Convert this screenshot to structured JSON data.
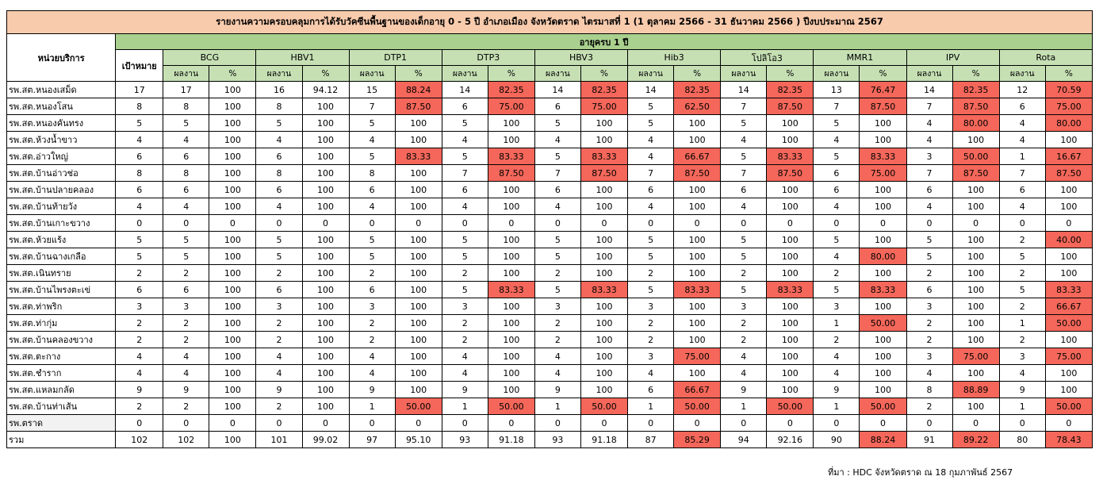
{
  "report": {
    "title": "รายงานความครอบคลุมการได้รับวัคซีนพื้นฐานของเด็กอายุ 0 - 5 ปี อำเภอเมือง จังหวัดตราด ไตรมาสที่ 1 (1 ตุลาคม 2566 - 31 ธันวาคม 2566 ) ปีงบประมาณ 2567",
    "unit_header": "หน่วยบริการ",
    "age_band": "อายุครบ 1 ปี",
    "target_header": "เป้าหมาย",
    "result_label": "ผลงาน",
    "percent_label": "%",
    "source": "ที่มา : HDC จังหวัดตราด ณ 18 กุมภาพันธ์ 2567",
    "highlight_color": "#f4675a",
    "header_color": "#f8cbad",
    "band_color": "#a9d08e",
    "sub_color": "#c6e0b4"
  },
  "vaccines": [
    "BCG",
    "HBV1",
    "DTP1",
    "DTP3",
    "HBV3",
    "Hib3",
    "โปลิโอ3",
    "MMR1",
    "IPV",
    "Rota"
  ],
  "rows": [
    {
      "unit": "รพ.สต.หนองเสม็ด",
      "target": "17",
      "cells": [
        [
          "17",
          "100",
          0
        ],
        [
          "16",
          "94.12",
          0
        ],
        [
          "15",
          "88.24",
          1
        ],
        [
          "14",
          "82.35",
          1
        ],
        [
          "14",
          "82.35",
          1
        ],
        [
          "14",
          "82.35",
          1
        ],
        [
          "14",
          "82.35",
          1
        ],
        [
          "13",
          "76.47",
          1
        ],
        [
          "14",
          "82.35",
          1
        ],
        [
          "12",
          "70.59",
          1
        ]
      ]
    },
    {
      "unit": "รพ.สต.หนองโสน",
      "target": "8",
      "cells": [
        [
          "8",
          "100",
          0
        ],
        [
          "8",
          "100",
          0
        ],
        [
          "7",
          "87.50",
          1
        ],
        [
          "6",
          "75.00",
          1
        ],
        [
          "6",
          "75.00",
          1
        ],
        [
          "5",
          "62.50",
          1
        ],
        [
          "7",
          "87.50",
          1
        ],
        [
          "7",
          "87.50",
          1
        ],
        [
          "7",
          "87.50",
          1
        ],
        [
          "6",
          "75.00",
          1
        ]
      ]
    },
    {
      "unit": "รพ.สต.หนองคันทรง",
      "target": "5",
      "cells": [
        [
          "5",
          "100",
          0
        ],
        [
          "5",
          "100",
          0
        ],
        [
          "5",
          "100",
          0
        ],
        [
          "5",
          "100",
          0
        ],
        [
          "5",
          "100",
          0
        ],
        [
          "5",
          "100",
          0
        ],
        [
          "5",
          "100",
          0
        ],
        [
          "5",
          "100",
          0
        ],
        [
          "4",
          "80.00",
          1
        ],
        [
          "4",
          "80.00",
          1
        ]
      ]
    },
    {
      "unit": "รพ.สต.ห้วงน้ำขาว",
      "target": "4",
      "cells": [
        [
          "4",
          "100",
          0
        ],
        [
          "4",
          "100",
          0
        ],
        [
          "4",
          "100",
          0
        ],
        [
          "4",
          "100",
          0
        ],
        [
          "4",
          "100",
          0
        ],
        [
          "4",
          "100",
          0
        ],
        [
          "4",
          "100",
          0
        ],
        [
          "4",
          "100",
          0
        ],
        [
          "4",
          "100",
          0
        ],
        [
          "4",
          "100",
          0
        ]
      ]
    },
    {
      "unit": "รพ.สต.อ่าวใหญ่",
      "target": "6",
      "cells": [
        [
          "6",
          "100",
          0
        ],
        [
          "6",
          "100",
          0
        ],
        [
          "5",
          "83.33",
          1
        ],
        [
          "5",
          "83.33",
          1
        ],
        [
          "5",
          "83.33",
          1
        ],
        [
          "4",
          "66.67",
          1
        ],
        [
          "5",
          "83.33",
          1
        ],
        [
          "5",
          "83.33",
          1
        ],
        [
          "3",
          "50.00",
          1
        ],
        [
          "1",
          "16.67",
          1
        ]
      ]
    },
    {
      "unit": "รพ.สต.บ้านอ่าวช่อ",
      "target": "8",
      "cells": [
        [
          "8",
          "100",
          0
        ],
        [
          "8",
          "100",
          0
        ],
        [
          "8",
          "100",
          0
        ],
        [
          "7",
          "87.50",
          1
        ],
        [
          "7",
          "87.50",
          1
        ],
        [
          "7",
          "87.50",
          1
        ],
        [
          "7",
          "87.50",
          1
        ],
        [
          "6",
          "75.00",
          1
        ],
        [
          "7",
          "87.50",
          1
        ],
        [
          "7",
          "87.50",
          1
        ]
      ]
    },
    {
      "unit": "รพ.สต.บ้านปลายคลอง",
      "target": "6",
      "cells": [
        [
          "6",
          "100",
          0
        ],
        [
          "6",
          "100",
          0
        ],
        [
          "6",
          "100",
          0
        ],
        [
          "6",
          "100",
          0
        ],
        [
          "6",
          "100",
          0
        ],
        [
          "6",
          "100",
          0
        ],
        [
          "6",
          "100",
          0
        ],
        [
          "6",
          "100",
          0
        ],
        [
          "6",
          "100",
          0
        ],
        [
          "6",
          "100",
          0
        ]
      ]
    },
    {
      "unit": "รพ.สต.บ้านท้ายวัง",
      "target": "4",
      "cells": [
        [
          "4",
          "100",
          0
        ],
        [
          "4",
          "100",
          0
        ],
        [
          "4",
          "100",
          0
        ],
        [
          "4",
          "100",
          0
        ],
        [
          "4",
          "100",
          0
        ],
        [
          "4",
          "100",
          0
        ],
        [
          "4",
          "100",
          0
        ],
        [
          "4",
          "100",
          0
        ],
        [
          "4",
          "100",
          0
        ],
        [
          "4",
          "100",
          0
        ]
      ]
    },
    {
      "unit": "รพ.สต.บ้านเกาะขวาง",
      "target": "0",
      "cells": [
        [
          "0",
          "0",
          0
        ],
        [
          "0",
          "0",
          0
        ],
        [
          "0",
          "0",
          0
        ],
        [
          "0",
          "0",
          0
        ],
        [
          "0",
          "0",
          0
        ],
        [
          "0",
          "0",
          0
        ],
        [
          "0",
          "0",
          0
        ],
        [
          "0",
          "0",
          0
        ],
        [
          "0",
          "0",
          0
        ],
        [
          "0",
          "0",
          0
        ]
      ]
    },
    {
      "unit": "รพ.สต.ห้วยแร้ง",
      "target": "5",
      "cells": [
        [
          "5",
          "100",
          0
        ],
        [
          "5",
          "100",
          0
        ],
        [
          "5",
          "100",
          0
        ],
        [
          "5",
          "100",
          0
        ],
        [
          "5",
          "100",
          0
        ],
        [
          "5",
          "100",
          0
        ],
        [
          "5",
          "100",
          0
        ],
        [
          "5",
          "100",
          0
        ],
        [
          "5",
          "100",
          0
        ],
        [
          "2",
          "40.00",
          1
        ]
      ]
    },
    {
      "unit": "รพ.สต.บ้านฉางเกลือ",
      "target": "5",
      "cells": [
        [
          "5",
          "100",
          0
        ],
        [
          "5",
          "100",
          0
        ],
        [
          "5",
          "100",
          0
        ],
        [
          "5",
          "100",
          0
        ],
        [
          "5",
          "100",
          0
        ],
        [
          "5",
          "100",
          0
        ],
        [
          "5",
          "100",
          0
        ],
        [
          "4",
          "80.00",
          1
        ],
        [
          "5",
          "100",
          0
        ],
        [
          "5",
          "100",
          0
        ]
      ]
    },
    {
      "unit": "รพ.สต.เนินทราย",
      "target": "2",
      "cells": [
        [
          "2",
          "100",
          0
        ],
        [
          "2",
          "100",
          0
        ],
        [
          "2",
          "100",
          0
        ],
        [
          "2",
          "100",
          0
        ],
        [
          "2",
          "100",
          0
        ],
        [
          "2",
          "100",
          0
        ],
        [
          "2",
          "100",
          0
        ],
        [
          "2",
          "100",
          0
        ],
        [
          "2",
          "100",
          0
        ],
        [
          "2",
          "100",
          0
        ]
      ]
    },
    {
      "unit": "รพ.สต.บ้านไพรงตะเข่",
      "target": "6",
      "cells": [
        [
          "6",
          "100",
          0
        ],
        [
          "6",
          "100",
          0
        ],
        [
          "6",
          "100",
          0
        ],
        [
          "5",
          "83.33",
          1
        ],
        [
          "5",
          "83.33",
          1
        ],
        [
          "5",
          "83.33",
          1
        ],
        [
          "5",
          "83.33",
          1
        ],
        [
          "5",
          "83.33",
          1
        ],
        [
          "6",
          "100",
          0
        ],
        [
          "5",
          "83.33",
          1
        ]
      ]
    },
    {
      "unit": "รพ.สต.ท่าพริก",
      "target": "3",
      "cells": [
        [
          "3",
          "100",
          0
        ],
        [
          "3",
          "100",
          0
        ],
        [
          "3",
          "100",
          0
        ],
        [
          "3",
          "100",
          0
        ],
        [
          "3",
          "100",
          0
        ],
        [
          "3",
          "100",
          0
        ],
        [
          "3",
          "100",
          0
        ],
        [
          "3",
          "100",
          0
        ],
        [
          "3",
          "100",
          0
        ],
        [
          "2",
          "66.67",
          1
        ]
      ]
    },
    {
      "unit": "รพ.สต.ท่ากุ่ม",
      "target": "2",
      "cells": [
        [
          "2",
          "100",
          0
        ],
        [
          "2",
          "100",
          0
        ],
        [
          "2",
          "100",
          0
        ],
        [
          "2",
          "100",
          0
        ],
        [
          "2",
          "100",
          0
        ],
        [
          "2",
          "100",
          0
        ],
        [
          "2",
          "100",
          0
        ],
        [
          "1",
          "50.00",
          1
        ],
        [
          "2",
          "100",
          0
        ],
        [
          "1",
          "50.00",
          1
        ]
      ]
    },
    {
      "unit": "รพ.สต.บ้านคลองขวาง",
      "target": "2",
      "cells": [
        [
          "2",
          "100",
          0
        ],
        [
          "2",
          "100",
          0
        ],
        [
          "2",
          "100",
          0
        ],
        [
          "2",
          "100",
          0
        ],
        [
          "2",
          "100",
          0
        ],
        [
          "2",
          "100",
          0
        ],
        [
          "2",
          "100",
          0
        ],
        [
          "2",
          "100",
          0
        ],
        [
          "2",
          "100",
          0
        ],
        [
          "2",
          "100",
          0
        ]
      ]
    },
    {
      "unit": "รพ.สต.ตะกาง",
      "target": "4",
      "cells": [
        [
          "4",
          "100",
          0
        ],
        [
          "4",
          "100",
          0
        ],
        [
          "4",
          "100",
          0
        ],
        [
          "4",
          "100",
          0
        ],
        [
          "4",
          "100",
          0
        ],
        [
          "3",
          "75.00",
          1
        ],
        [
          "4",
          "100",
          0
        ],
        [
          "4",
          "100",
          0
        ],
        [
          "3",
          "75.00",
          1
        ],
        [
          "3",
          "75.00",
          1
        ]
      ]
    },
    {
      "unit": "รพ.สต.ชำราก",
      "target": "4",
      "cells": [
        [
          "4",
          "100",
          0
        ],
        [
          "4",
          "100",
          0
        ],
        [
          "4",
          "100",
          0
        ],
        [
          "4",
          "100",
          0
        ],
        [
          "4",
          "100",
          0
        ],
        [
          "4",
          "100",
          0
        ],
        [
          "4",
          "100",
          0
        ],
        [
          "4",
          "100",
          0
        ],
        [
          "4",
          "100",
          0
        ],
        [
          "4",
          "100",
          0
        ]
      ]
    },
    {
      "unit": "รพ.สต.แหลมกลัด",
      "target": "9",
      "cells": [
        [
          "9",
          "100",
          0
        ],
        [
          "9",
          "100",
          0
        ],
        [
          "9",
          "100",
          0
        ],
        [
          "9",
          "100",
          0
        ],
        [
          "9",
          "100",
          0
        ],
        [
          "6",
          "66.67",
          1
        ],
        [
          "9",
          "100",
          0
        ],
        [
          "9",
          "100",
          0
        ],
        [
          "8",
          "88.89",
          1
        ],
        [
          "9",
          "100",
          0
        ]
      ]
    },
    {
      "unit": "รพ.สต.บ้านท่าเส้น",
      "target": "2",
      "cells": [
        [
          "2",
          "100",
          0
        ],
        [
          "2",
          "100",
          0
        ],
        [
          "1",
          "50.00",
          1
        ],
        [
          "1",
          "50.00",
          1
        ],
        [
          "1",
          "50.00",
          1
        ],
        [
          "1",
          "50.00",
          1
        ],
        [
          "1",
          "50.00",
          1
        ],
        [
          "1",
          "50.00",
          1
        ],
        [
          "2",
          "100",
          0
        ],
        [
          "1",
          "50.00",
          1
        ]
      ]
    },
    {
      "unit": "รพ.ตราด",
      "target": "0",
      "grey": true,
      "cells": [
        [
          "0",
          "0",
          0
        ],
        [
          "0",
          "0",
          0
        ],
        [
          "0",
          "0",
          0
        ],
        [
          "0",
          "0",
          0
        ],
        [
          "0",
          "0",
          0
        ],
        [
          "0",
          "0",
          0
        ],
        [
          "0",
          "0",
          0
        ],
        [
          "0",
          "0",
          0
        ],
        [
          "0",
          "0",
          0
        ],
        [
          "0",
          "0",
          0
        ]
      ]
    },
    {
      "unit": "รวม",
      "target": "102",
      "cells": [
        [
          "102",
          "100",
          0
        ],
        [
          "101",
          "99.02",
          0
        ],
        [
          "97",
          "95.10",
          0
        ],
        [
          "93",
          "91.18",
          0
        ],
        [
          "93",
          "91.18",
          0
        ],
        [
          "87",
          "85.29",
          1
        ],
        [
          "94",
          "92.16",
          0
        ],
        [
          "90",
          "88.24",
          1
        ],
        [
          "91",
          "89.22",
          1
        ],
        [
          "80",
          "78.43",
          1
        ]
      ]
    }
  ]
}
